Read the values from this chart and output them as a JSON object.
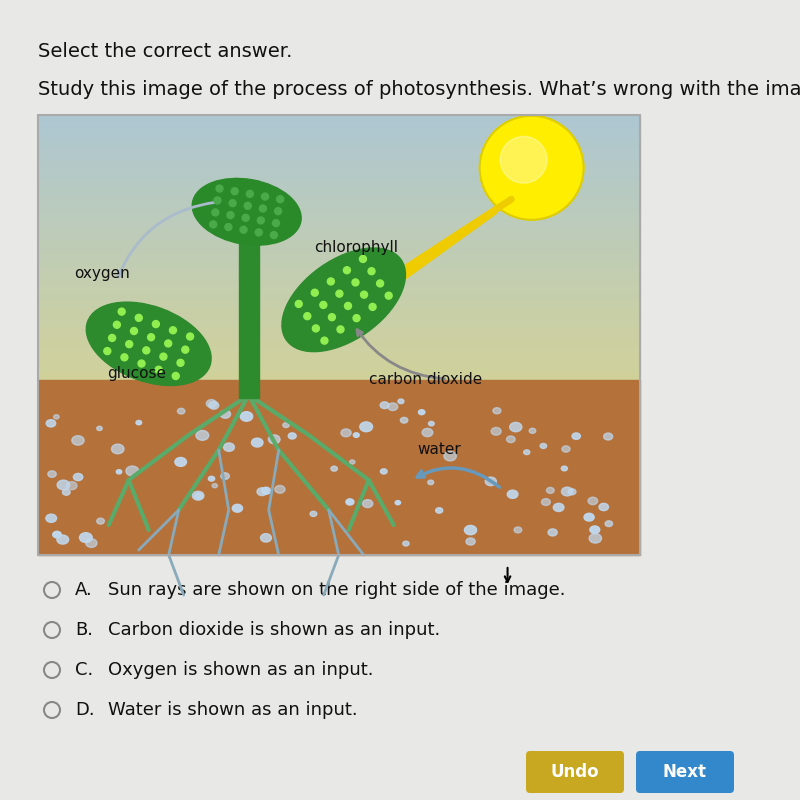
{
  "bg_color": "#e8e8e6",
  "title_text": "Select the correct answer.",
  "question_text": "Study this image of the process of photosynthesis. What’s wrong with the image?",
  "choices": [
    {
      "letter": "A.",
      "text": "Sun rays are shown on the right side of the image."
    },
    {
      "letter": "B.",
      "text": "Carbon dioxide is shown as an input."
    },
    {
      "letter": "C.",
      "text": "Oxygen is shown as an input."
    },
    {
      "letter": "D.",
      "text": "Water is shown as an input."
    }
  ],
  "label_oxygen": "oxygen",
  "label_chlorophyll": "chlorophyll",
  "label_glucose": "glucose",
  "label_carbon": "carbon dioxide",
  "label_water": "water",
  "undo_color": "#c8a820",
  "next_color": "#3388cc",
  "font_size_title": 14,
  "font_size_question": 14,
  "font_size_choice": 13,
  "font_size_label": 11
}
